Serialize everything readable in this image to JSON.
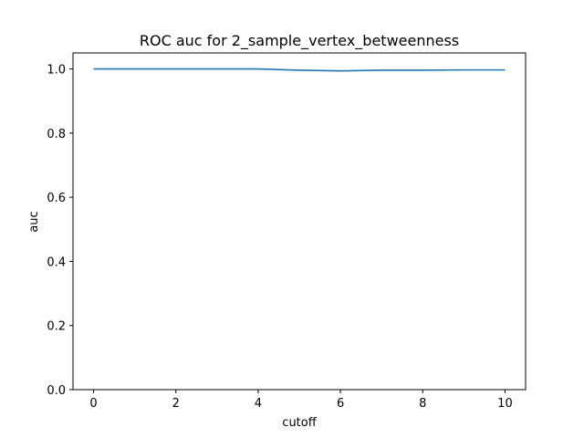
{
  "chart_data": {
    "type": "line",
    "title": "ROC auc for 2_sample_vertex_betweenness",
    "xlabel": "cutoff",
    "ylabel": "auc",
    "xlim": [
      -0.5,
      10.5
    ],
    "ylim": [
      0.0,
      1.05
    ],
    "xticks": [
      0,
      2,
      4,
      6,
      8,
      10
    ],
    "yticks": [
      0.0,
      0.2,
      0.4,
      0.6,
      0.8,
      1.0
    ],
    "xtick_labels": [
      "0",
      "2",
      "4",
      "6",
      "8",
      "10"
    ],
    "ytick_labels": [
      "0.0",
      "0.2",
      "0.4",
      "0.6",
      "0.8",
      "1.0"
    ],
    "grid": false,
    "series": [
      {
        "color": "#1f77b4",
        "x": [
          0,
          1,
          2,
          3,
          4,
          5,
          6,
          7,
          8,
          9,
          10
        ],
        "y": [
          1.0,
          1.0,
          1.0,
          1.0,
          1.0,
          0.996,
          0.994,
          0.996,
          0.996,
          0.997,
          0.997
        ]
      }
    ]
  }
}
